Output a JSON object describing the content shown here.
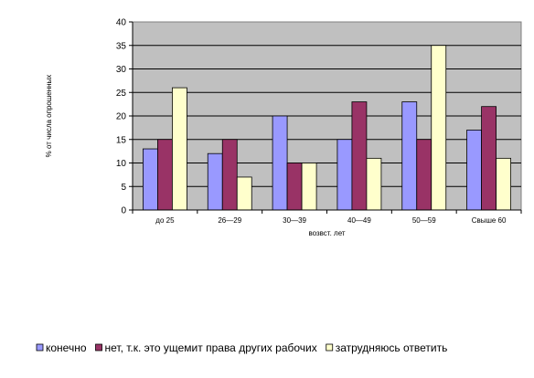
{
  "chart_data": {
    "type": "bar",
    "xlabel": "возвст. лет",
    "ylabel": "% от числа опрошенных",
    "ylim": [
      0,
      40
    ],
    "yticks": [
      "0",
      "5",
      "10",
      "15",
      "20",
      "25",
      "30",
      "35",
      "40"
    ],
    "categories": [
      "до 25",
      "26—29",
      "30—39",
      "40—49",
      "50—59",
      "Свыше 60"
    ],
    "series": [
      {
        "name": "конечно",
        "color": "#9999ff",
        "values": [
          13,
          12,
          20,
          15,
          23,
          17
        ]
      },
      {
        "name": "нет, т.к. это ущемит права других рабочих",
        "color": "#993366",
        "values": [
          15,
          15,
          10,
          23,
          15,
          22
        ]
      },
      {
        "name": "затрудняюсь ответить",
        "color": "#ffffcc",
        "values": [
          26,
          7,
          10,
          11,
          35,
          11
        ]
      }
    ],
    "plot_background": "#c0c0c0",
    "grid": true,
    "legend_position": "bottom"
  }
}
